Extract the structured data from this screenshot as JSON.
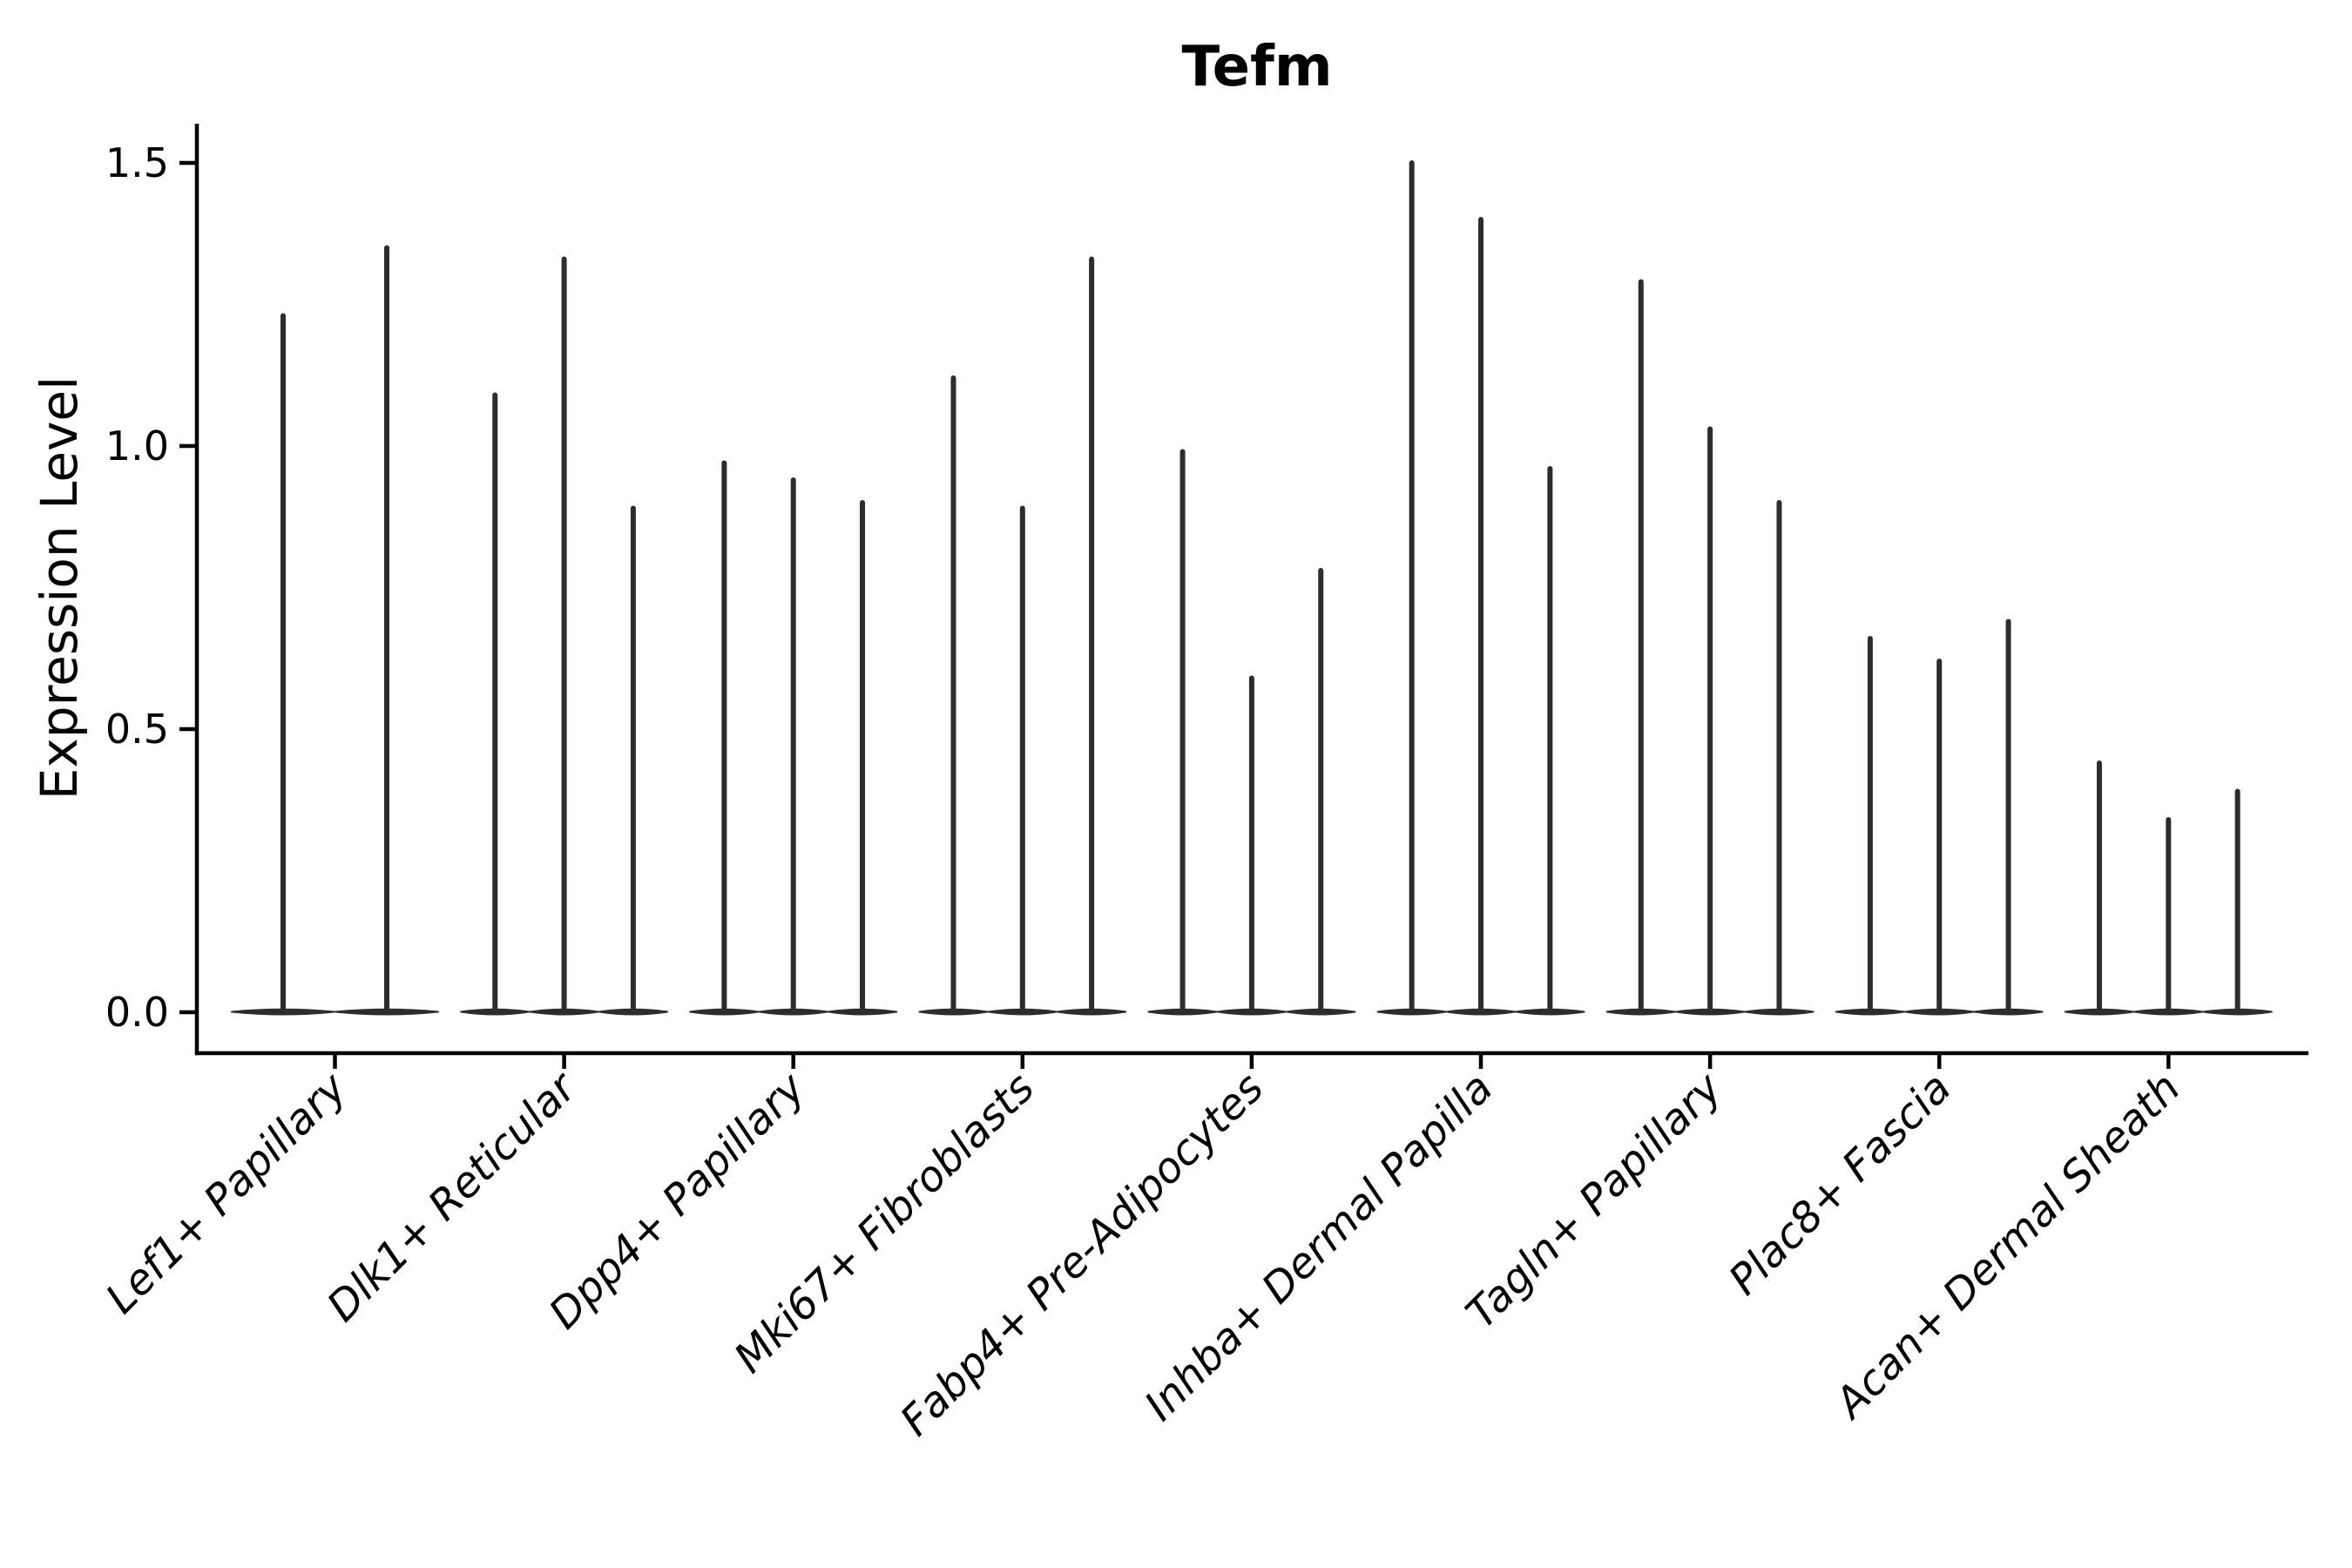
{
  "chart_data": {
    "type": "violin",
    "title": "Tefm",
    "ylabel": "Expression Level",
    "xlabel": "",
    "yticks": [
      "0.0",
      "0.5",
      "1.0",
      "1.5"
    ],
    "ytick_values": [
      0.0,
      0.5,
      1.0,
      1.5
    ],
    "ylim": [
      0,
      1.57
    ],
    "grid": "off",
    "legend": "none",
    "categories": [
      "Lef1+ Papillary",
      "Dlk1+ Reticular",
      "Dpp4+ Papillary",
      "Mki67+ Fibroblasts",
      "Fabp4+ Pre-Adipocytes",
      "Inhba+ Dermal Papilla",
      "Tagln+ Papillary",
      "Plac8+ Fascia",
      "Acan+ Dermal Sheath"
    ],
    "groups": [
      {
        "label": "Lef1+ Papillary",
        "violin_max_values": [
          1.23,
          1.35
        ]
      },
      {
        "label": "Dlk1+ Reticular",
        "violin_max_values": [
          1.09,
          1.33,
          0.89
        ]
      },
      {
        "label": "Dpp4+ Papillary",
        "violin_max_values": [
          0.97,
          0.94,
          0.9
        ]
      },
      {
        "label": "Mki67+ Fibroblasts",
        "violin_max_values": [
          1.12,
          0.89,
          1.33
        ]
      },
      {
        "label": "Fabp4+ Pre-Adipocytes",
        "violin_max_values": [
          0.99,
          0.59,
          0.78
        ]
      },
      {
        "label": "Inhba+ Dermal Papilla",
        "violin_max_values": [
          1.5,
          1.4,
          0.96
        ]
      },
      {
        "label": "Tagln+ Papillary",
        "violin_max_values": [
          1.29,
          1.03,
          0.9
        ]
      },
      {
        "label": "Plac8+ Fascia",
        "violin_max_values": [
          0.66,
          0.62,
          0.69
        ]
      },
      {
        "label": "Acan+ Dermal Sheath",
        "violin_max_values": [
          0.44,
          0.34,
          0.39
        ]
      }
    ],
    "colors": {
      "violin": "#2d2d2d",
      "axis": "#000000",
      "text": "#000000",
      "background": "#ffffff"
    }
  }
}
